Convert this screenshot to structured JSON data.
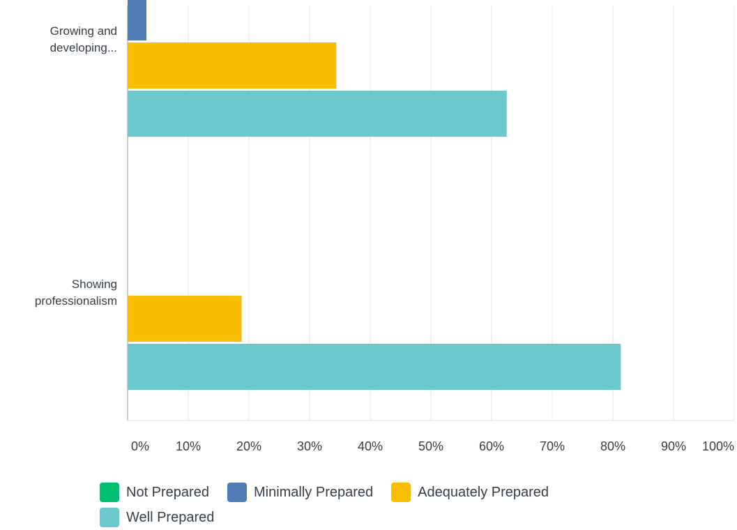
{
  "chart_data": {
    "type": "bar",
    "orientation": "horizontal",
    "categories": [
      "Growing and developing...",
      "Showing professionalism"
    ],
    "category_lines": [
      [
        "Growing and",
        "developing..."
      ],
      [
        "Showing",
        "professionalism"
      ]
    ],
    "series": [
      {
        "name": "Not Prepared",
        "color": "#00bf6f",
        "values": [
          0,
          0
        ]
      },
      {
        "name": "Minimally Prepared",
        "color": "#507cb6",
        "values": [
          3.1,
          0
        ]
      },
      {
        "name": "Adequately Prepared",
        "color": "#f9be00",
        "values": [
          34.4,
          18.8
        ]
      },
      {
        "name": "Well Prepared",
        "color": "#6bc8cd",
        "values": [
          62.5,
          81.3
        ]
      }
    ],
    "xlim": [
      0,
      100
    ],
    "x_ticks": [
      "0%",
      "10%",
      "20%",
      "30%",
      "40%",
      "50%",
      "60%",
      "70%",
      "80%",
      "90%",
      "100%"
    ],
    "grid": true,
    "legend_position": "bottom"
  }
}
